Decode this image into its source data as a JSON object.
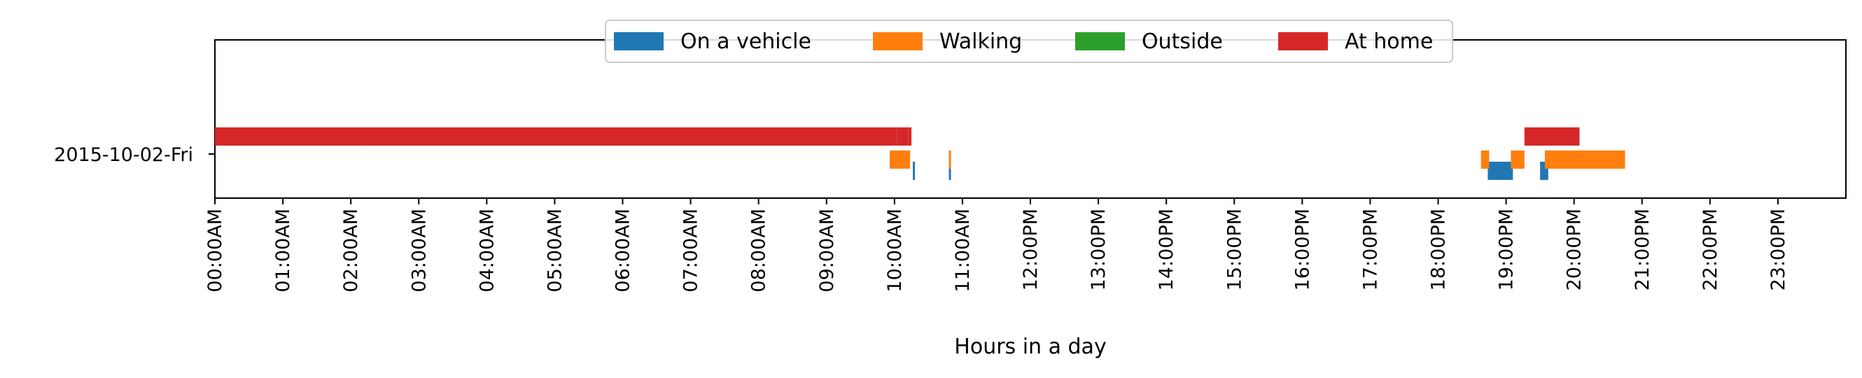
{
  "chart_data": {
    "type": "timeline",
    "xlabel": "Hours in a day",
    "xlim": [
      0,
      24
    ],
    "x_ticks": [
      {
        "value": 0,
        "label": "00:00AM"
      },
      {
        "value": 1,
        "label": "01:00AM"
      },
      {
        "value": 2,
        "label": "02:00AM"
      },
      {
        "value": 3,
        "label": "03:00AM"
      },
      {
        "value": 4,
        "label": "04:00AM"
      },
      {
        "value": 5,
        "label": "05:00AM"
      },
      {
        "value": 6,
        "label": "06:00AM"
      },
      {
        "value": 7,
        "label": "07:00AM"
      },
      {
        "value": 8,
        "label": "08:00AM"
      },
      {
        "value": 9,
        "label": "09:00AM"
      },
      {
        "value": 10,
        "label": "10:00AM"
      },
      {
        "value": 11,
        "label": "11:00AM"
      },
      {
        "value": 12,
        "label": "12:00PM"
      },
      {
        "value": 13,
        "label": "13:00PM"
      },
      {
        "value": 14,
        "label": "14:00PM"
      },
      {
        "value": 15,
        "label": "15:00PM"
      },
      {
        "value": 16,
        "label": "16:00PM"
      },
      {
        "value": 17,
        "label": "17:00PM"
      },
      {
        "value": 18,
        "label": "18:00PM"
      },
      {
        "value": 19,
        "label": "19:00PM"
      },
      {
        "value": 20,
        "label": "20:00PM"
      },
      {
        "value": 21,
        "label": "21:00PM"
      },
      {
        "value": 22,
        "label": "22:00PM"
      },
      {
        "value": 23,
        "label": "23:00PM"
      }
    ],
    "y_categories": [
      "2015-10-02-Fri"
    ],
    "legend_position": "top-center",
    "grid": false,
    "series": [
      {
        "name": "On a vehicle",
        "color": "#1f77b4",
        "intervals": [
          [
            10.27,
            10.3
          ],
          [
            10.8,
            10.83
          ],
          [
            18.73,
            19.1
          ],
          [
            19.5,
            19.62
          ]
        ]
      },
      {
        "name": "Walking",
        "color": "#ff7f0e",
        "intervals": [
          [
            9.93,
            10.23
          ],
          [
            10.8,
            10.83
          ],
          [
            18.63,
            18.75
          ],
          [
            19.07,
            19.27
          ],
          [
            19.57,
            20.75
          ]
        ]
      },
      {
        "name": "Outside",
        "color": "#2ca02c",
        "intervals": []
      },
      {
        "name": "At home",
        "color": "#d62728",
        "intervals": [
          [
            0,
            2.22
          ],
          [
            2.22,
            10.03
          ],
          [
            10.03,
            10.2
          ],
          [
            10.2,
            10.25
          ],
          [
            19.27,
            20.08
          ]
        ]
      }
    ]
  }
}
